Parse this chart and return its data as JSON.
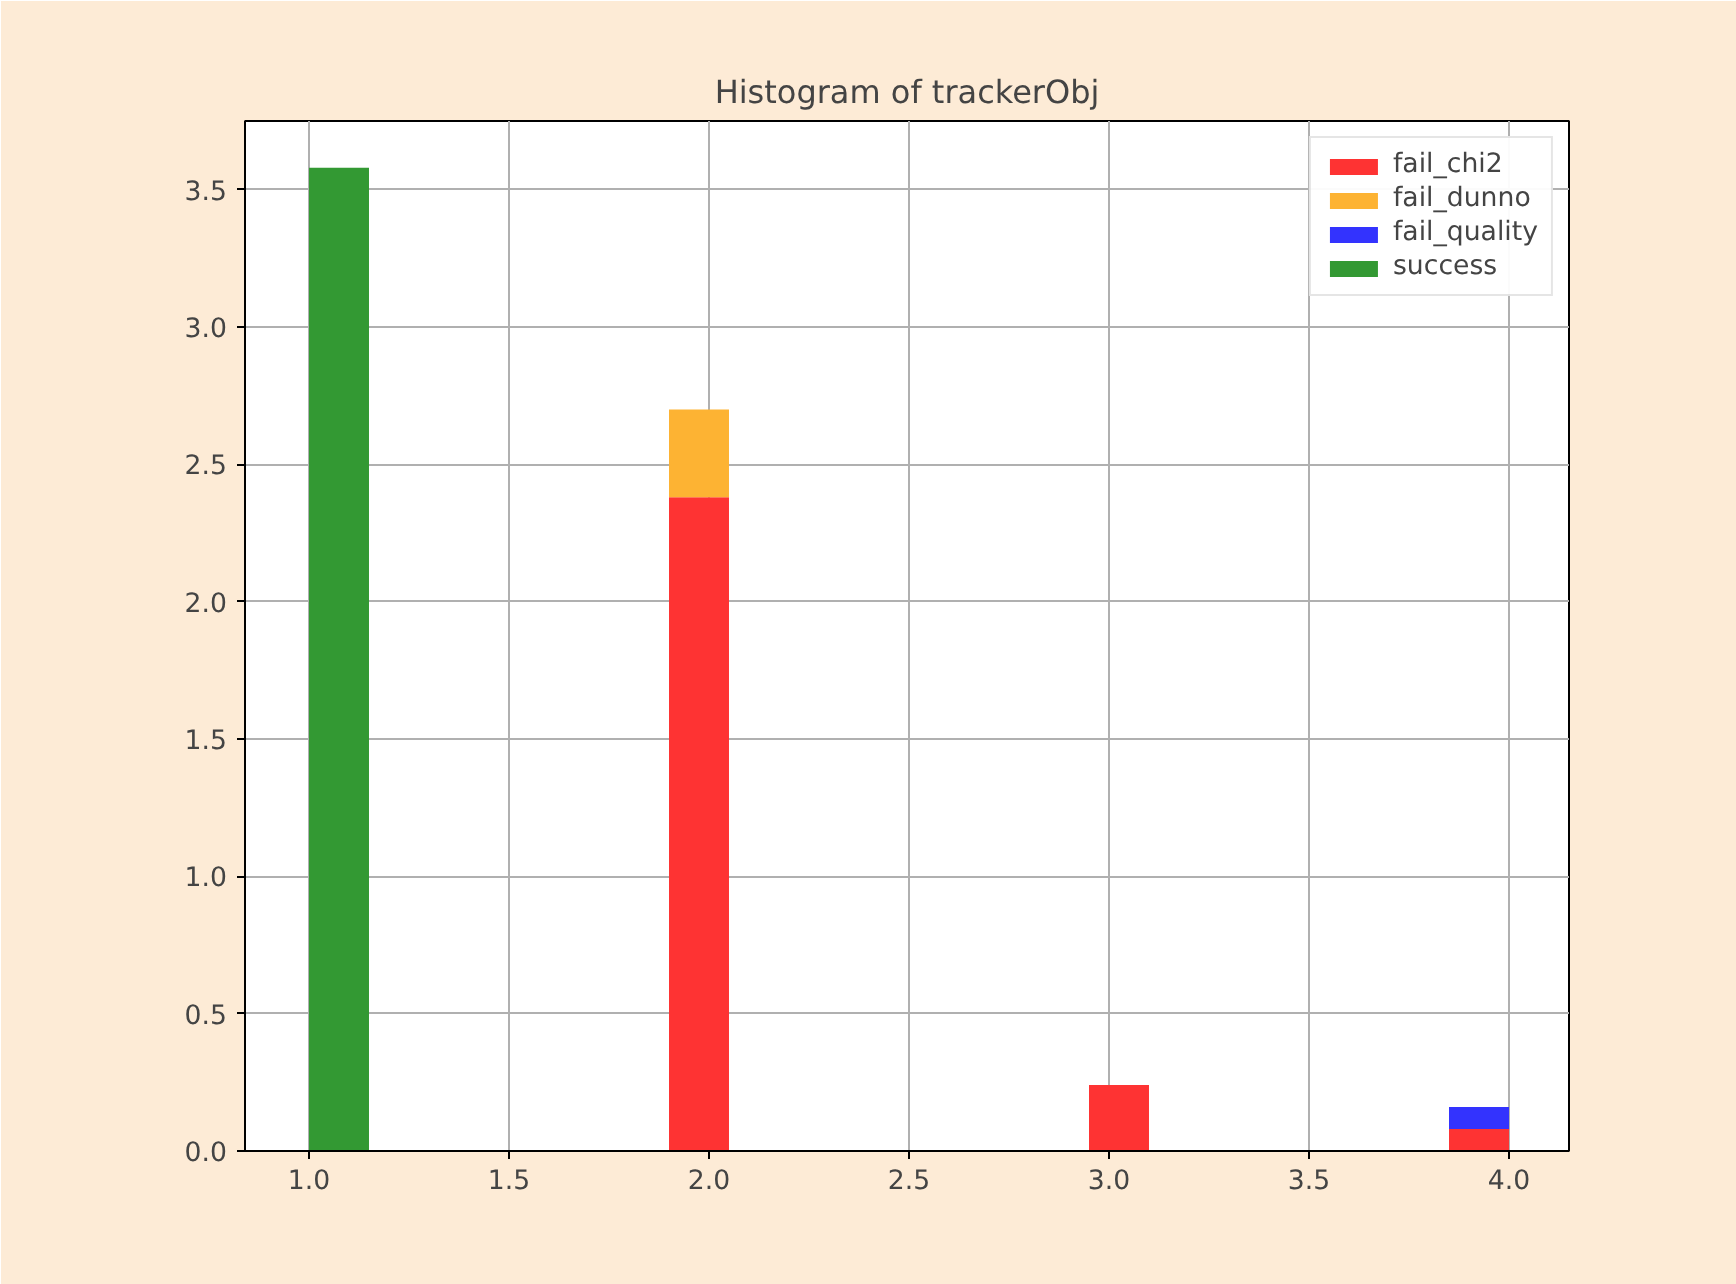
{
  "chart_data": {
    "type": "bar",
    "title": "Histogram of trackerObj",
    "stacked": true,
    "x": [
      1.075,
      1.975,
      3.025,
      3.925
    ],
    "series": [
      {
        "name": "fail_chi2",
        "color": "#fe3333",
        "values": [
          0,
          2.38,
          0.24,
          0.08
        ]
      },
      {
        "name": "fail_dunno",
        "color": "#fdb333",
        "values": [
          0,
          0.32,
          0,
          0
        ]
      },
      {
        "name": "fail_quality",
        "color": "#3333fe",
        "values": [
          0,
          0,
          0,
          0.08
        ]
      },
      {
        "name": "success",
        "color": "#339933",
        "values": [
          3.58,
          0,
          0,
          0
        ]
      }
    ],
    "xlim": [
      0.84,
      4.15
    ],
    "ylim": [
      0,
      3.75
    ],
    "xticks": [
      {
        "value": 1,
        "label": "1.0"
      },
      {
        "value": 1.5,
        "label": "1.5"
      },
      {
        "value": 2,
        "label": "2.0"
      },
      {
        "value": 2.5,
        "label": "2.5"
      },
      {
        "value": 3,
        "label": "3.0"
      },
      {
        "value": 3.5,
        "label": "3.5"
      },
      {
        "value": 4,
        "label": "4.0"
      }
    ],
    "yticks": [
      {
        "value": 0,
        "label": "0.0"
      },
      {
        "value": 0.5,
        "label": "0.5"
      },
      {
        "value": 1,
        "label": "1.0"
      },
      {
        "value": 1.5,
        "label": "1.5"
      },
      {
        "value": 2,
        "label": "2.0"
      },
      {
        "value": 2.5,
        "label": "2.5"
      },
      {
        "value": 3,
        "label": "3.0"
      },
      {
        "value": 3.5,
        "label": "3.5"
      }
    ],
    "grid": true,
    "legend": "top right"
  }
}
